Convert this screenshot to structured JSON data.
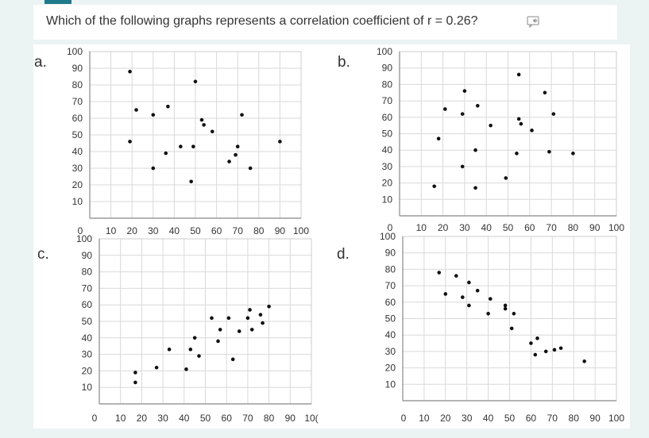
{
  "question": {
    "text": "Which of the following graphs represents a correlation coefficient of r = 0.26?",
    "speaker_icon": "speaker-icon"
  },
  "chart_data": [
    {
      "type": "scatter",
      "option_label": "a.",
      "xlim": [
        0,
        100
      ],
      "ylim": [
        0,
        100
      ],
      "x_ticks": [
        "10",
        "20",
        "30",
        "40",
        "50",
        "60",
        "70",
        "80",
        "90",
        "100"
      ],
      "y_ticks": [
        "10",
        "20",
        "30",
        "40",
        "50",
        "60",
        "70",
        "80",
        "90",
        "100"
      ],
      "origin_label": "0",
      "grid": true,
      "points": [
        [
          19,
          88
        ],
        [
          19,
          46
        ],
        [
          22,
          65
        ],
        [
          30,
          62
        ],
        [
          30,
          30
        ],
        [
          36,
          39
        ],
        [
          37,
          67
        ],
        [
          43,
          43
        ],
        [
          48,
          22
        ],
        [
          49,
          43
        ],
        [
          50,
          82
        ],
        [
          53,
          59
        ],
        [
          54,
          56
        ],
        [
          58,
          52
        ],
        [
          66,
          34
        ],
        [
          69,
          38
        ],
        [
          70,
          43
        ],
        [
          72,
          62
        ],
        [
          76,
          30
        ],
        [
          90,
          46
        ]
      ]
    },
    {
      "type": "scatter",
      "option_label": "b.",
      "xlim": [
        0,
        100
      ],
      "ylim": [
        0,
        100
      ],
      "x_ticks": [
        "10",
        "20",
        "30",
        "40",
        "50",
        "60",
        "70",
        "80",
        "90",
        "100"
      ],
      "y_ticks": [
        "10",
        "20",
        "30",
        "40",
        "50",
        "60",
        "70",
        "80",
        "90",
        "100"
      ],
      "origin_label": "0",
      "grid": true,
      "points": [
        [
          16,
          18
        ],
        [
          18,
          47
        ],
        [
          21,
          65
        ],
        [
          29,
          30
        ],
        [
          29,
          62
        ],
        [
          30,
          76
        ],
        [
          35,
          17
        ],
        [
          35,
          40
        ],
        [
          36,
          67
        ],
        [
          42,
          55
        ],
        [
          49,
          23
        ],
        [
          54,
          38
        ],
        [
          55,
          86
        ],
        [
          55,
          59
        ],
        [
          56,
          56
        ],
        [
          61,
          52
        ],
        [
          67,
          75
        ],
        [
          69,
          39
        ],
        [
          71,
          62
        ],
        [
          80,
          38
        ]
      ]
    },
    {
      "type": "scatter",
      "option_label": "c.",
      "xlim": [
        0,
        100
      ],
      "ylim": [
        0,
        100
      ],
      "x_ticks": [
        "10",
        "20",
        "30",
        "40",
        "50",
        "60",
        "70",
        "80",
        "90",
        "10("
      ],
      "y_ticks": [
        "10",
        "20",
        "30",
        "40",
        "50",
        "60",
        "70",
        "80",
        "90",
        "100"
      ],
      "origin_label": "0",
      "grid": true,
      "points": [
        [
          17,
          13
        ],
        [
          17,
          19
        ],
        [
          27,
          22
        ],
        [
          33,
          33
        ],
        [
          41,
          21
        ],
        [
          43,
          33
        ],
        [
          45,
          40
        ],
        [
          47,
          29
        ],
        [
          53,
          52
        ],
        [
          56,
          38
        ],
        [
          57,
          45
        ],
        [
          61,
          52
        ],
        [
          63,
          27
        ],
        [
          66,
          44
        ],
        [
          70,
          52
        ],
        [
          71,
          57
        ],
        [
          72,
          45
        ],
        [
          76,
          54
        ],
        [
          77,
          49
        ],
        [
          80,
          59
        ]
      ]
    },
    {
      "type": "scatter",
      "option_label": "d.",
      "xlim": [
        0,
        100
      ],
      "ylim": [
        0,
        100
      ],
      "x_ticks": [
        "10",
        "20",
        "30",
        "40",
        "50",
        "60",
        "70",
        "80",
        "90",
        "100"
      ],
      "y_ticks": [
        "10",
        "20",
        "30",
        "40",
        "50",
        "60",
        "70",
        "80",
        "90",
        "100"
      ],
      "origin_label": "0",
      "grid": true,
      "points": [
        [
          17,
          78
        ],
        [
          20,
          65
        ],
        [
          25,
          76
        ],
        [
          28,
          63
        ],
        [
          31,
          58
        ],
        [
          31,
          72
        ],
        [
          35,
          67
        ],
        [
          40,
          53
        ],
        [
          41,
          62
        ],
        [
          48,
          58
        ],
        [
          48,
          56
        ],
        [
          51,
          44
        ],
        [
          52,
          53
        ],
        [
          60,
          35
        ],
        [
          62,
          28
        ],
        [
          63,
          38
        ],
        [
          67,
          30
        ],
        [
          71,
          31
        ],
        [
          74,
          32
        ],
        [
          85,
          24
        ]
      ]
    }
  ]
}
